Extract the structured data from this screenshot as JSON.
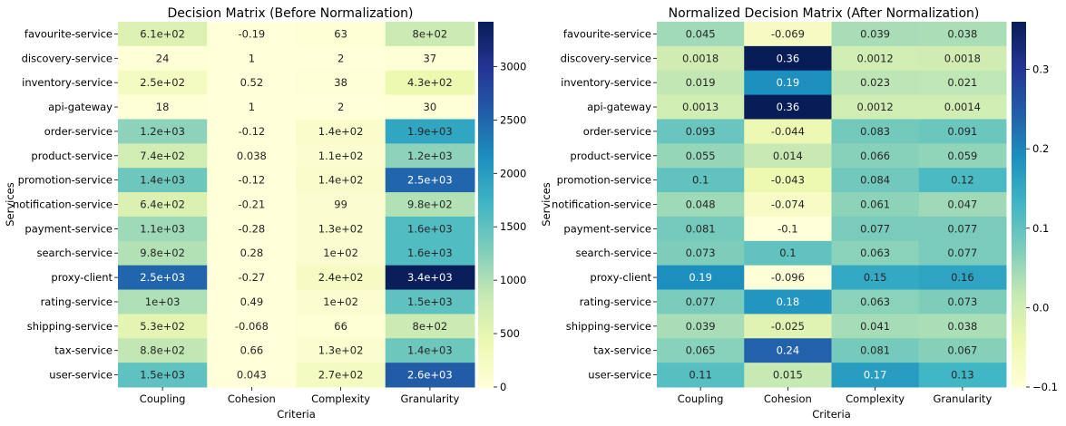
{
  "chart_data": [
    {
      "type": "heatmap",
      "title": "Decision Matrix (Before Normalization)",
      "xlabel": "Criteria",
      "ylabel": "Services",
      "columns": [
        "Coupling",
        "Cohesion",
        "Complexity",
        "Granularity"
      ],
      "rows": [
        "favourite-service",
        "discovery-service",
        "inventory-service",
        "api-gateway",
        "order-service",
        "product-service",
        "promotion-service",
        "notification-service",
        "payment-service",
        "search-service",
        "proxy-client",
        "rating-service",
        "shipping-service",
        "tax-service",
        "user-service"
      ],
      "values": [
        [
          610,
          -0.19,
          63,
          800
        ],
        [
          24,
          1,
          2,
          37
        ],
        [
          250,
          0.52,
          38,
          430
        ],
        [
          18,
          1,
          2,
          30
        ],
        [
          1200,
          -0.12,
          140,
          1900
        ],
        [
          740,
          0.038,
          110,
          1200
        ],
        [
          1400,
          -0.12,
          140,
          2500
        ],
        [
          640,
          -0.21,
          99,
          980
        ],
        [
          1100,
          -0.28,
          130,
          1600
        ],
        [
          980,
          0.28,
          100,
          1600
        ],
        [
          2500,
          -0.27,
          240,
          3400
        ],
        [
          1000,
          0.49,
          100,
          1500
        ],
        [
          530,
          -0.068,
          66,
          800
        ],
        [
          880,
          0.66,
          130,
          1400
        ],
        [
          1500,
          0.043,
          270,
          2600
        ]
      ],
      "labels": [
        [
          "6.1e+02",
          "-0.19",
          "63",
          "8e+02"
        ],
        [
          "24",
          "1",
          "2",
          "37"
        ],
        [
          "2.5e+02",
          "0.52",
          "38",
          "4.3e+02"
        ],
        [
          "18",
          "1",
          "2",
          "30"
        ],
        [
          "1.2e+03",
          "-0.12",
          "1.4e+02",
          "1.9e+03"
        ],
        [
          "7.4e+02",
          "0.038",
          "1.1e+02",
          "1.2e+03"
        ],
        [
          "1.4e+03",
          "-0.12",
          "1.4e+02",
          "2.5e+03"
        ],
        [
          "6.4e+02",
          "-0.21",
          "99",
          "9.8e+02"
        ],
        [
          "1.1e+03",
          "-0.28",
          "1.3e+02",
          "1.6e+03"
        ],
        [
          "9.8e+02",
          "0.28",
          "1e+02",
          "1.6e+03"
        ],
        [
          "2.5e+03",
          "-0.27",
          "2.4e+02",
          "3.4e+03"
        ],
        [
          "1e+03",
          "0.49",
          "1e+02",
          "1.5e+03"
        ],
        [
          "5.3e+02",
          "-0.068",
          "66",
          "8e+02"
        ],
        [
          "8.8e+02",
          "0.66",
          "1.3e+02",
          "1.4e+03"
        ],
        [
          "1.5e+03",
          "0.043",
          "2.7e+02",
          "2.6e+03"
        ]
      ],
      "colorbar": {
        "colormap": "YlGnBu",
        "vmin": -0.28,
        "vmax": 3420,
        "ticks": [
          0,
          500,
          1000,
          1500,
          2000,
          2500,
          3000
        ],
        "tick_labels": [
          "0",
          "500",
          "1000",
          "1500",
          "2000",
          "2500",
          "3000"
        ]
      }
    },
    {
      "type": "heatmap",
      "title": "Normalized Decision Matrix (After Normalization)",
      "xlabel": "Criteria",
      "ylabel": "Services",
      "columns": [
        "Coupling",
        "Cohesion",
        "Complexity",
        "Granularity"
      ],
      "rows": [
        "favourite-service",
        "discovery-service",
        "inventory-service",
        "api-gateway",
        "order-service",
        "product-service",
        "promotion-service",
        "notification-service",
        "payment-service",
        "search-service",
        "proxy-client",
        "rating-service",
        "shipping-service",
        "tax-service",
        "user-service"
      ],
      "values": [
        [
          0.045,
          -0.069,
          0.039,
          0.038
        ],
        [
          0.0018,
          0.36,
          0.0012,
          0.0018
        ],
        [
          0.019,
          0.19,
          0.023,
          0.021
        ],
        [
          0.0013,
          0.36,
          0.0012,
          0.0014
        ],
        [
          0.093,
          -0.044,
          0.083,
          0.091
        ],
        [
          0.055,
          0.014,
          0.066,
          0.059
        ],
        [
          0.1,
          -0.043,
          0.084,
          0.12
        ],
        [
          0.048,
          -0.074,
          0.061,
          0.047
        ],
        [
          0.081,
          -0.1,
          0.077,
          0.077
        ],
        [
          0.073,
          0.1,
          0.063,
          0.077
        ],
        [
          0.19,
          -0.096,
          0.15,
          0.16
        ],
        [
          0.077,
          0.18,
          0.063,
          0.073
        ],
        [
          0.039,
          -0.025,
          0.041,
          0.038
        ],
        [
          0.065,
          0.24,
          0.081,
          0.067
        ],
        [
          0.11,
          0.015,
          0.17,
          0.13
        ]
      ],
      "labels": [
        [
          "0.045",
          "-0.069",
          "0.039",
          "0.038"
        ],
        [
          "0.0018",
          "0.36",
          "0.0012",
          "0.0018"
        ],
        [
          "0.019",
          "0.19",
          "0.023",
          "0.021"
        ],
        [
          "0.0013",
          "0.36",
          "0.0012",
          "0.0014"
        ],
        [
          "0.093",
          "-0.044",
          "0.083",
          "0.091"
        ],
        [
          "0.055",
          "0.014",
          "0.066",
          "0.059"
        ],
        [
          "0.1",
          "-0.043",
          "0.084",
          "0.12"
        ],
        [
          "0.048",
          "-0.074",
          "0.061",
          "0.047"
        ],
        [
          "0.081",
          "-0.1",
          "0.077",
          "0.077"
        ],
        [
          "0.073",
          "0.1",
          "0.063",
          "0.077"
        ],
        [
          "0.19",
          "-0.096",
          "0.15",
          "0.16"
        ],
        [
          "0.077",
          "0.18",
          "0.063",
          "0.073"
        ],
        [
          "0.039",
          "-0.025",
          "0.041",
          "0.038"
        ],
        [
          "0.065",
          "0.24",
          "0.081",
          "0.067"
        ],
        [
          "0.11",
          "0.015",
          "0.17",
          "0.13"
        ]
      ],
      "colorbar": {
        "colormap": "YlGnBu",
        "vmin": -0.1,
        "vmax": 0.36,
        "ticks": [
          -0.1,
          0.0,
          0.1,
          0.2,
          0.3
        ],
        "tick_labels": [
          "−0.1",
          "0.0",
          "0.1",
          "0.2",
          "0.3"
        ]
      }
    }
  ]
}
